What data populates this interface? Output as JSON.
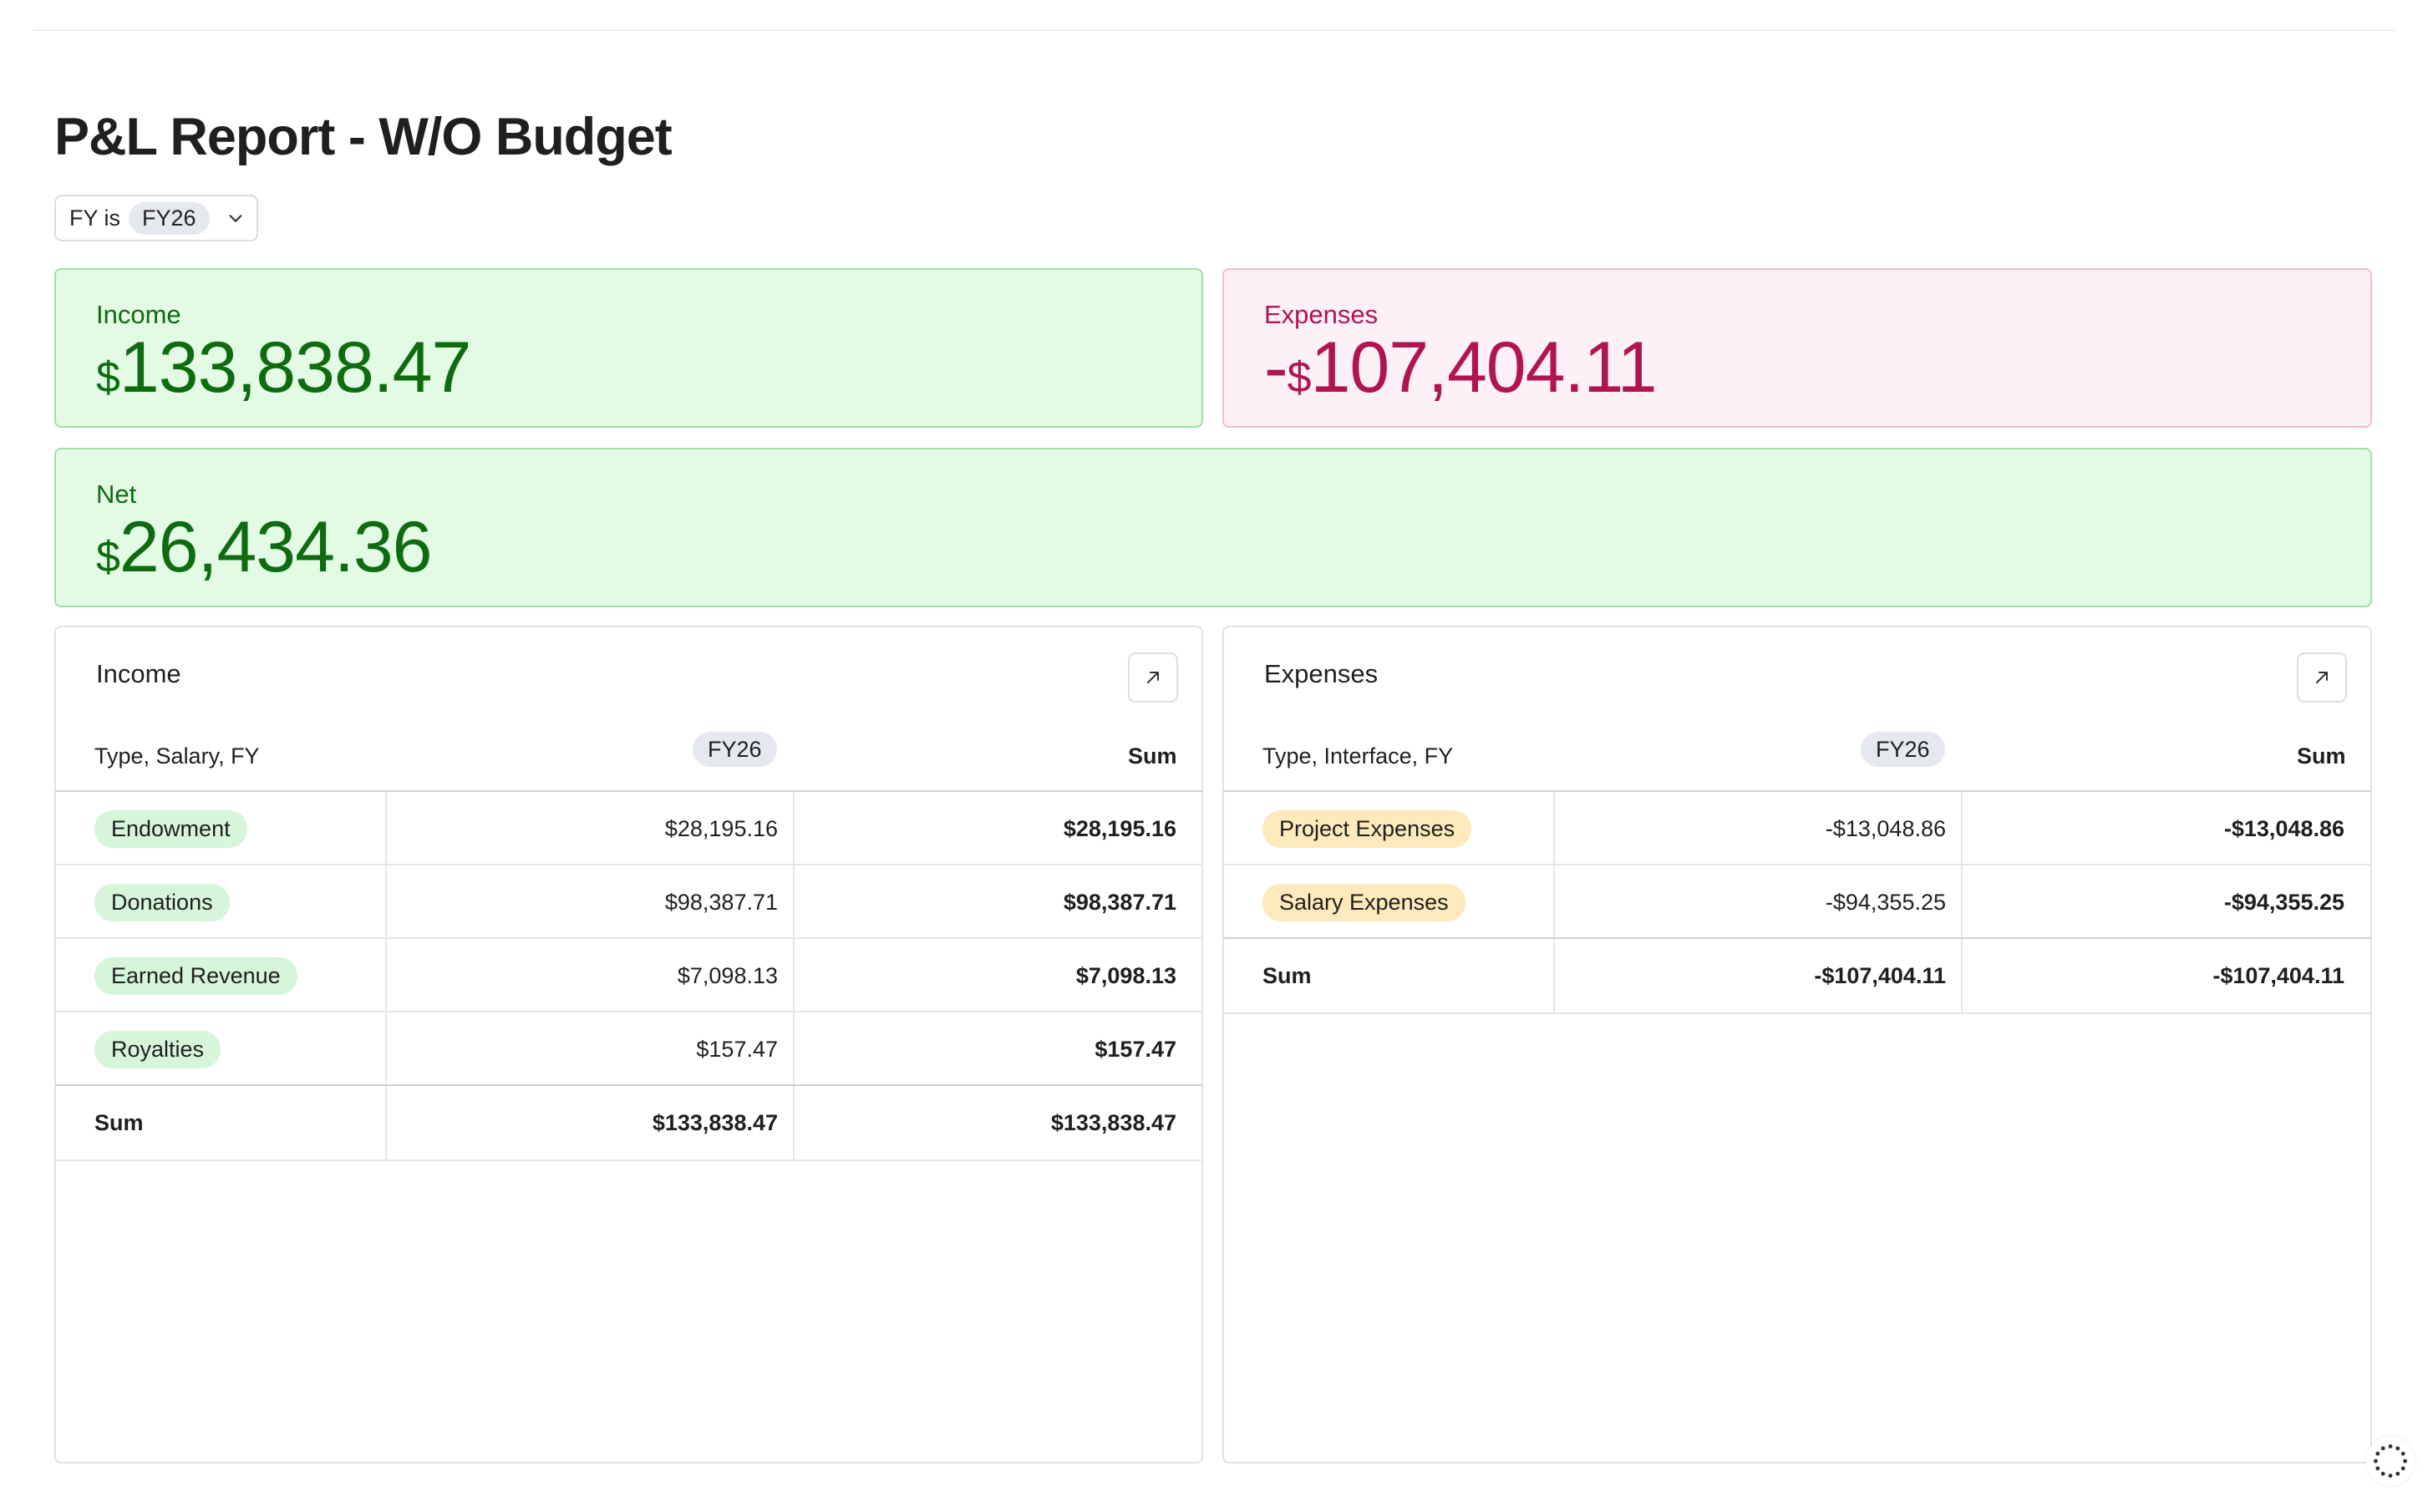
{
  "title": "P&L Report - W/O Budget",
  "filter": {
    "label": "FY is",
    "value": "FY26"
  },
  "kpis": {
    "income": {
      "label": "Income",
      "prefix": "",
      "currency": "$",
      "amount": "133,838.47",
      "color": "#0e6b10"
    },
    "expenses": {
      "label": "Expenses",
      "prefix": "-",
      "currency": "$",
      "amount": "107,404.11",
      "color": "#b0154f"
    },
    "net": {
      "label": "Net",
      "prefix": "",
      "currency": "$",
      "amount": "26,434.36",
      "color": "#0e6b10"
    }
  },
  "income_table": {
    "title": "Income",
    "header": {
      "dims": "Type, Salary, FY",
      "period": "FY26",
      "sum": "Sum"
    },
    "rows": [
      {
        "type": "Endowment",
        "fy26": "$28,195.16",
        "sum": "$28,195.16"
      },
      {
        "type": "Donations",
        "fy26": "$98,387.71",
        "sum": "$98,387.71"
      },
      {
        "type": "Earned Revenue",
        "fy26": "$7,098.13",
        "sum": "$7,098.13"
      },
      {
        "type": "Royalties",
        "fy26": "$157.47",
        "sum": "$157.47"
      }
    ],
    "total": {
      "label": "Sum",
      "fy26": "$133,838.47",
      "sum": "$133,838.47"
    }
  },
  "expenses_table": {
    "title": "Expenses",
    "header": {
      "dims": "Type, Interface, FY",
      "period": "FY26",
      "sum": "Sum"
    },
    "rows": [
      {
        "type": "Project Expenses",
        "fy26": "-$13,048.86",
        "sum": "-$13,048.86"
      },
      {
        "type": "Salary Expenses",
        "fy26": "-$94,355.25",
        "sum": "-$94,355.25"
      }
    ],
    "total": {
      "label": "Sum",
      "fy26": "-$107,404.11",
      "sum": "-$107,404.11"
    }
  },
  "icons": {
    "expand": "expand-arrow-icon",
    "chevron": "chevron-down-icon",
    "spinner": "loading-spinner-icon"
  }
}
